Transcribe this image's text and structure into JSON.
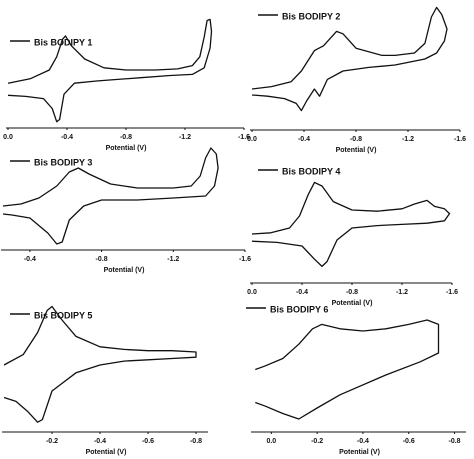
{
  "chart_data": [
    {
      "type": "line",
      "xlabel": "Potential (V)",
      "xlim": [
        0,
        -1.6
      ],
      "ylim": [
        0,
        100
      ],
      "xticks": [
        {
          "value": 0,
          "label": "0.0"
        },
        -0.4,
        -0.8,
        -1.2,
        -1.6
      ],
      "x": [
        0,
        -0.15,
        -0.28,
        -0.33,
        -0.37,
        -0.39,
        -0.43,
        -0.52,
        -0.65,
        -0.8,
        -1.0,
        -1.15,
        -1.25,
        -1.3,
        -1.33,
        -1.35,
        -1.37,
        -1.38,
        -1.37,
        -1.33,
        -1.25,
        -1.1,
        -0.9,
        -0.7,
        -0.6,
        -0.45,
        -0.38,
        -0.35,
        -0.33,
        -0.3,
        -0.24,
        -0.12,
        0
      ],
      "series": [
        {
          "name": "Bis BODIPY 1",
          "color": "#111111",
          "values": [
            38,
            42,
            50,
            62,
            78,
            81,
            72,
            60,
            52,
            50,
            50,
            51,
            54,
            62,
            80,
            95,
            96,
            85,
            70,
            52,
            46,
            45,
            43,
            41,
            40,
            38,
            28,
            5,
            3,
            15,
            24,
            26,
            27
          ]
        }
      ]
    },
    {
      "type": "line",
      "xlabel": "Potential (V)",
      "xlim": [
        0,
        -1.6
      ],
      "ylim": [
        0,
        100
      ],
      "xticks": [
        {
          "value": 0,
          "label": "0.0"
        },
        -0.4,
        -0.8,
        -1.2,
        -1.6
      ],
      "x": [
        0,
        -0.15,
        -0.3,
        -0.38,
        -0.48,
        -0.55,
        -0.65,
        -0.7,
        -0.8,
        -1.0,
        -1.1,
        -1.25,
        -1.33,
        -1.38,
        -1.42,
        -1.46,
        -1.5,
        -1.48,
        -1.42,
        -1.33,
        -1.1,
        -0.9,
        -0.7,
        -0.58,
        -0.52,
        -0.48,
        -0.42,
        -0.38,
        -0.34,
        -0.25,
        -0.12,
        0
      ],
      "series": [
        {
          "name": "Bis BODIPY 2",
          "color": "#111111",
          "values": [
            30,
            32,
            36,
            45,
            62,
            66,
            78,
            76,
            64,
            58,
            58,
            60,
            68,
            90,
            98,
            92,
            80,
            70,
            60,
            55,
            50,
            48,
            45,
            38,
            24,
            30,
            20,
            12,
            18,
            22,
            24,
            25
          ]
        }
      ]
    },
    {
      "type": "line",
      "xlabel": "Potential (V)",
      "xlim": [
        -0.25,
        -1.6
      ],
      "ylim": [
        0,
        100
      ],
      "xticks": [
        -0.4,
        -0.8,
        -1.2,
        -1.6
      ],
      "x": [
        -0.25,
        -0.35,
        -0.45,
        -0.55,
        -0.62,
        -0.67,
        -0.73,
        -0.85,
        -1.0,
        -1.2,
        -1.3,
        -1.35,
        -1.38,
        -1.41,
        -1.44,
        -1.45,
        -1.43,
        -1.38,
        -1.2,
        -1.0,
        -0.8,
        -0.7,
        -0.62,
        -0.58,
        -0.55,
        -0.5,
        -0.4,
        -0.3,
        -0.25
      ],
      "series": [
        {
          "name": "Bis BODIPY 3",
          "color": "#111111",
          "values": [
            42,
            44,
            50,
            62,
            76,
            80,
            74,
            64,
            60,
            60,
            62,
            72,
            90,
            100,
            94,
            80,
            62,
            52,
            50,
            48,
            48,
            42,
            28,
            6,
            4,
            15,
            30,
            33,
            34
          ]
        }
      ]
    },
    {
      "type": "line",
      "xlabel": "Potential (V)",
      "xlim": [
        0,
        -1.6
      ],
      "ylim": [
        0,
        100
      ],
      "xticks": [
        {
          "value": 0,
          "label": "0.0"
        },
        -0.4,
        -0.8,
        -1.2,
        -1.6
      ],
      "x": [
        0,
        -0.15,
        -0.3,
        -0.38,
        -0.45,
        -0.5,
        -0.56,
        -0.65,
        -0.8,
        -1.0,
        -1.2,
        -1.3,
        -1.4,
        -1.46,
        -1.54,
        -1.58,
        -1.54,
        -1.4,
        -1.2,
        -1.0,
        -0.8,
        -0.68,
        -0.6,
        -0.56,
        -0.5,
        -0.4,
        -0.2,
        0
      ],
      "series": [
        {
          "name": "Bis BODIPY 4",
          "color": "#111111",
          "values": [
            35,
            36,
            40,
            50,
            68,
            78,
            75,
            62,
            55,
            54,
            56,
            60,
            63,
            58,
            56,
            52,
            46,
            44,
            43,
            42,
            40,
            30,
            12,
            8,
            14,
            25,
            28,
            29
          ]
        }
      ]
    },
    {
      "type": "line",
      "xlabel": "Potential (V)",
      "xlim": [
        0,
        -0.85
      ],
      "ylim": [
        0,
        100
      ],
      "xticks": [
        -0.2,
        -0.4,
        -0.6,
        -0.8
      ],
      "x": [
        0,
        -0.08,
        -0.14,
        -0.18,
        -0.2,
        -0.24,
        -0.3,
        -0.4,
        -0.5,
        -0.6,
        -0.7,
        -0.8,
        -0.8,
        -0.7,
        -0.6,
        -0.5,
        -0.4,
        -0.3,
        -0.2,
        -0.16,
        -0.14,
        -0.1,
        -0.05,
        0
      ],
      "series": [
        {
          "name": "Bis BODIPY 5",
          "color": "#111111",
          "values": [
            50,
            58,
            75,
            92,
            95,
            85,
            72,
            64,
            62,
            61,
            61,
            60,
            56,
            55,
            54,
            53,
            50,
            44,
            30,
            8,
            6,
            14,
            22,
            25
          ]
        }
      ]
    },
    {
      "type": "line",
      "xlabel": "Potential (V)",
      "xlim": [
        0.08,
        -0.85
      ],
      "ylim": [
        0,
        100
      ],
      "xticks": [
        {
          "value": 0,
          "label": "0.0"
        },
        -0.2,
        -0.4,
        -0.6,
        -0.8
      ],
      "x": [
        0.07,
        0.03,
        -0.05,
        -0.12,
        -0.18,
        -0.22,
        -0.3,
        -0.4,
        -0.5,
        -0.6,
        -0.68,
        -0.73,
        -0.73,
        -0.65,
        -0.5,
        -0.3,
        -0.2,
        -0.12,
        -0.05,
        0.03,
        0.07
      ],
      "series": [
        {
          "name": "Bis BODIPY 6",
          "color": "#111111",
          "values": [
            55,
            58,
            65,
            78,
            92,
            96,
            92,
            90,
            92,
            96,
            100,
            96,
            70,
            62,
            50,
            32,
            20,
            10,
            15,
            22,
            25
          ]
        }
      ]
    }
  ]
}
